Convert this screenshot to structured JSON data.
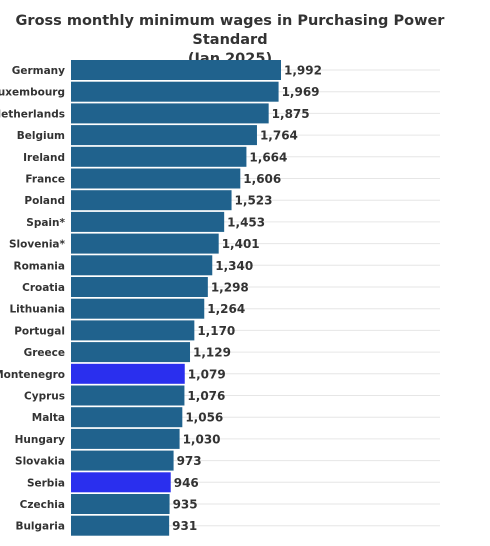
{
  "chart_data": {
    "type": "bar",
    "orientation": "horizontal",
    "title_line1": "Gross monthly minimum wages in Purchasing Power Standard",
    "title_line2": "(Jan 2025)",
    "xlabel": "",
    "ylabel": "",
    "xlim": [
      0,
      2600
    ],
    "grid": true,
    "colors": {
      "default": "#20628d",
      "highlight": "#2a2fee"
    },
    "categories": [
      "Germany",
      "Luxembourg",
      "Netherlands",
      "Belgium",
      "Ireland",
      "France",
      "Poland",
      "Spain*",
      "Slovenia*",
      "Romania",
      "Croatia",
      "Lithuania",
      "Portugal",
      "Greece",
      "Montenegro",
      "Cyprus",
      "Malta",
      "Hungary",
      "Slovakia",
      "Serbia",
      "Czechia",
      "Bulgaria"
    ],
    "values": [
      1992,
      1969,
      1875,
      1764,
      1664,
      1606,
      1523,
      1453,
      1401,
      1340,
      1298,
      1264,
      1170,
      1129,
      1079,
      1076,
      1056,
      1030,
      973,
      946,
      935,
      931
    ],
    "value_labels": [
      "1,992",
      "1,969",
      "1,875",
      "1,764",
      "1,664",
      "1,606",
      "1,523",
      "1,453",
      "1,401",
      "1,340",
      "1,298",
      "1,264",
      "1,170",
      "1,129",
      "1,079",
      "1,076",
      "1,056",
      "1,030",
      "973",
      "946",
      "935",
      "931"
    ],
    "highlighted": [
      "Montenegro",
      "Serbia"
    ]
  }
}
